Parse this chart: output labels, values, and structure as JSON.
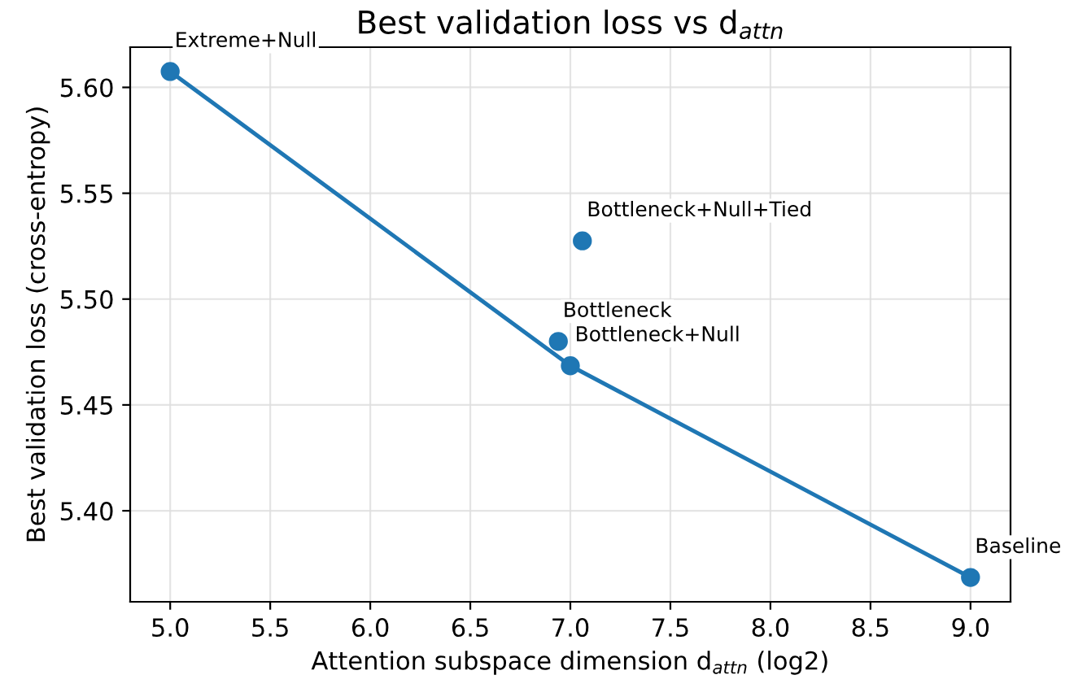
{
  "chart_data": {
    "type": "scatter",
    "title": "Best validation loss vs d$_{attn}$",
    "xlabel": "Attention subspace dimension d$_{attn}$ (log2)",
    "ylabel": "Best validation loss (cross-entropy)",
    "series": [
      {
        "type": "line",
        "color": "#1f77b4",
        "x": [
          5.0,
          7.0,
          9.0
        ],
        "values": [
          5.6075,
          5.4685,
          5.3685
        ]
      },
      {
        "color": "#1f77b4",
        "x": [
          5.0,
          6.94,
          7.0,
          7.06,
          9.0
        ],
        "values": [
          5.6075,
          5.48,
          5.4685,
          5.5275,
          5.3685
        ],
        "marker": "circle"
      }
    ],
    "annotations": [
      {
        "text": "Extreme+Null",
        "x": 5.0,
        "y": 5.6075
      },
      {
        "text": "Bottleneck",
        "x": 6.94,
        "y": 5.48
      },
      {
        "text": "Bottleneck+Null",
        "x": 7.0,
        "y": 5.4685
      },
      {
        "text": "Bottleneck+Null+Tied",
        "x": 7.06,
        "y": 5.5275
      },
      {
        "text": "Baseline",
        "x": 9.0,
        "y": 5.3685
      }
    ],
    "xlim": [
      4.8,
      9.2
    ],
    "xticks": [
      {
        "value": 5.0,
        "label": "5.0"
      },
      {
        "value": 5.5,
        "label": "5.5"
      },
      {
        "value": 6.0,
        "label": "6.0"
      },
      {
        "value": 6.5,
        "label": "6.5"
      },
      {
        "value": 7.0,
        "label": "7.0"
      },
      {
        "value": 7.5,
        "label": "7.5"
      },
      {
        "value": 8.0,
        "label": "8.0"
      },
      {
        "value": 8.5,
        "label": "8.5"
      },
      {
        "value": 9.0,
        "label": "9.0"
      }
    ],
    "ylim": [
      5.357,
      5.619
    ],
    "yticks": [
      {
        "value": 5.4,
        "label": "5.40"
      },
      {
        "value": 5.45,
        "label": "5.45"
      },
      {
        "value": 5.5,
        "label": "5.50"
      },
      {
        "value": 5.55,
        "label": "5.55"
      },
      {
        "value": 5.6,
        "label": "5.60"
      }
    ],
    "grid": true,
    "legend": false
  }
}
